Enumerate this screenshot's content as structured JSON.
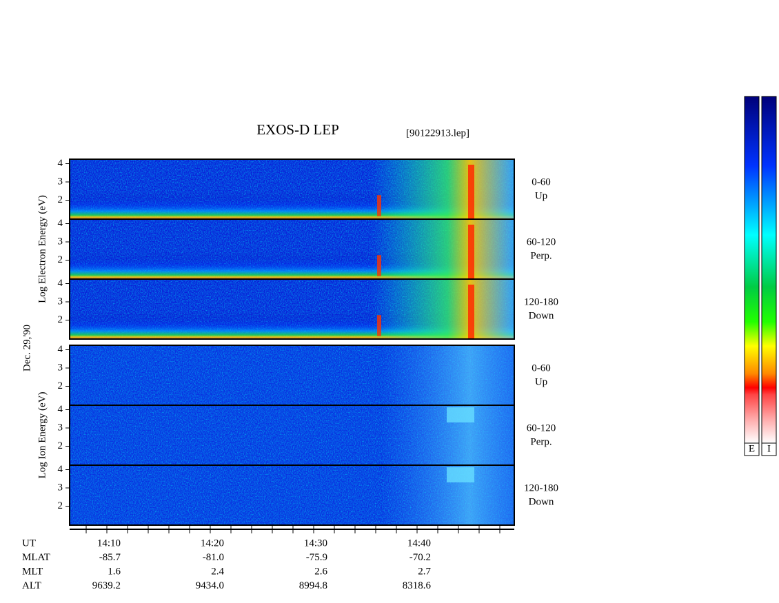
{
  "header": {
    "title": "EXOS-D LEP",
    "file": "[90122913.lep]"
  },
  "date": "Dec. 29,'90",
  "groups": [
    {
      "label": "Log Electron Energy (eV)",
      "species": "electron",
      "panels": [
        {
          "angle": "0-60",
          "direction": "Up",
          "yticks": [
            4,
            3,
            2
          ]
        },
        {
          "angle": "60-120",
          "direction": "Perp.",
          "yticks": [
            4,
            3,
            2
          ]
        },
        {
          "angle": "120-180",
          "direction": "Down",
          "yticks": [
            4,
            3,
            2
          ]
        }
      ]
    },
    {
      "label": "Log Ion Energy (eV)",
      "species": "ion",
      "panels": [
        {
          "angle": "0-60",
          "direction": "Up",
          "yticks": [
            4,
            3,
            2
          ]
        },
        {
          "angle": "60-120",
          "direction": "Perp.",
          "yticks": [
            4,
            3,
            2
          ]
        },
        {
          "angle": "120-180",
          "direction": "Down",
          "yticks": [
            4,
            3,
            2
          ]
        }
      ]
    }
  ],
  "time_axis": {
    "rows": [
      {
        "name": "UT",
        "values": [
          "14:10",
          "14:20",
          "14:30",
          "14:40"
        ]
      },
      {
        "name": "MLAT",
        "values": [
          "-85.7",
          "-81.0",
          "-75.9",
          "-70.2"
        ]
      },
      {
        "name": "MLT",
        "values": [
          "1.6",
          "2.4",
          "2.6",
          "2.7"
        ]
      },
      {
        "name": "ALT",
        "values": [
          "9639.2",
          "9434.0",
          "8994.8",
          "8318.6"
        ]
      }
    ]
  },
  "colorbars": [
    "E",
    "I"
  ]
}
